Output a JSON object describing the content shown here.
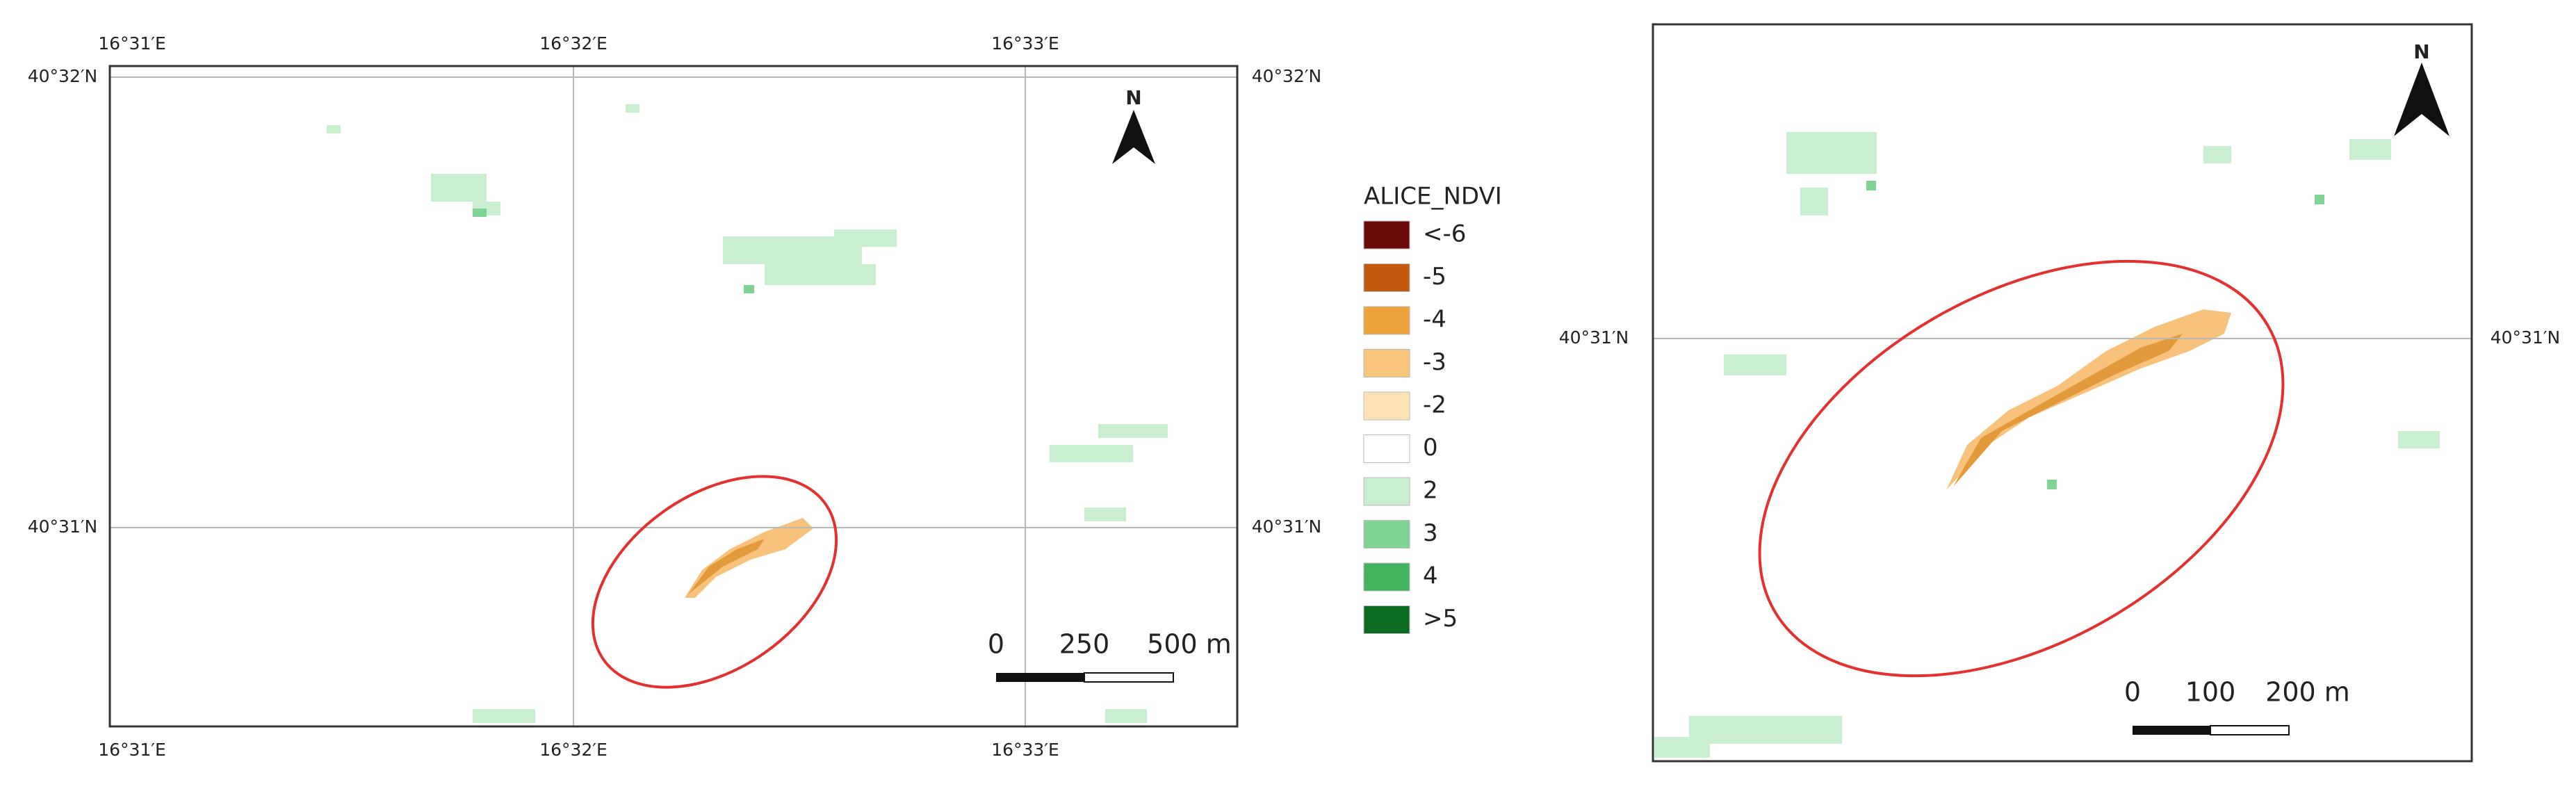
{
  "left_map": {
    "lon_labels": [
      "16°31′E",
      "16°32′E",
      "16°33′E"
    ],
    "lat_labels": [
      "40°32′N",
      "40°31′N"
    ],
    "north": "N",
    "scale_labels": [
      "0",
      "250",
      "500 m"
    ]
  },
  "legend": {
    "title": "ALICE_NDVI",
    "items": [
      {
        "label": "<-6",
        "color": "#6b0a0a"
      },
      {
        "label": "-5",
        "color": "#c45a10"
      },
      {
        "label": "-4",
        "color": "#eea23c"
      },
      {
        "label": "-3",
        "color": "#f8c57c"
      },
      {
        "label": "-2",
        "color": "#fde3b4"
      },
      {
        "label": "0",
        "color": "#ffffff"
      },
      {
        "label": "2",
        "color": "#c9efd0"
      },
      {
        "label": "3",
        "color": "#7fd493"
      },
      {
        "label": "4",
        "color": "#45b45e"
      },
      {
        "label": ">5",
        "color": "#0b6b1e"
      }
    ]
  },
  "right_map": {
    "lat_labels": [
      "40°31′N"
    ],
    "north": "N",
    "scale_labels": [
      "0",
      "100",
      "200 m"
    ]
  }
}
